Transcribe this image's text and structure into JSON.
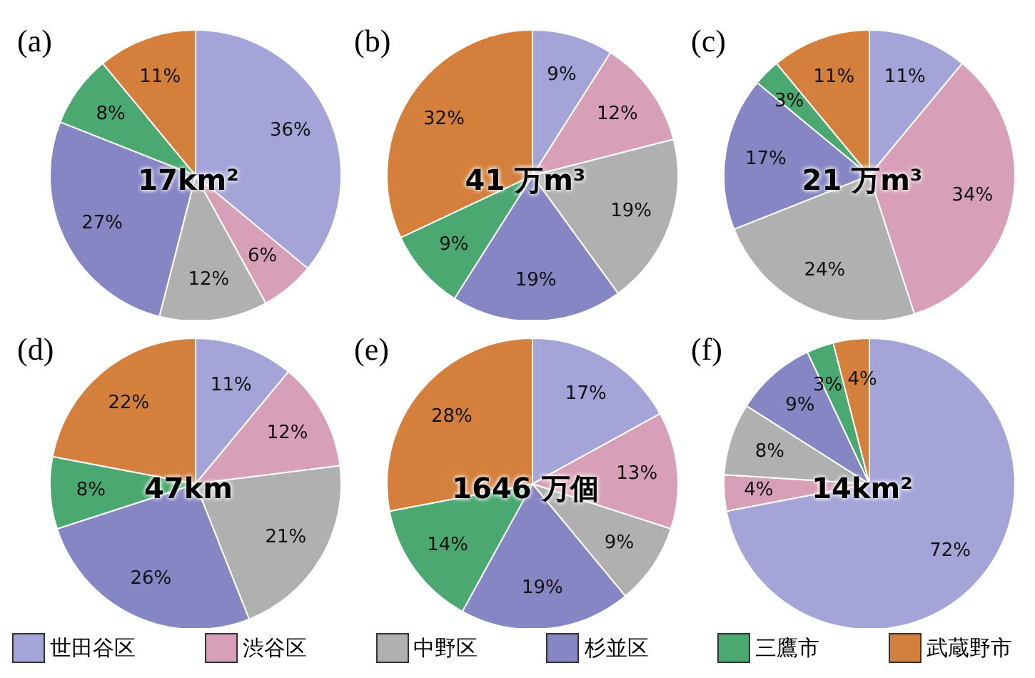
{
  "chart_data": [
    {
      "type": "pie",
      "title": "(a)",
      "categories": [
        "世田谷区",
        "渋谷区",
        "中野区",
        "杉並区",
        "三鷹市",
        "武蔵野市"
      ],
      "values": [
        36,
        6,
        12,
        27,
        8,
        11
      ],
      "value_labels": [
        "36%",
        "6%",
        "12%",
        "27%",
        "8%",
        "11%"
      ],
      "colors": [
        "#a4a4d8",
        "#d8a0b8",
        "#b0b0b0",
        "#8686c4",
        "#4aa870",
        "#d4803c"
      ],
      "annotations": [
        "17km²"
      ],
      "legend": "bottom"
    },
    {
      "type": "pie",
      "title": "(b)",
      "values": [
        9,
        12,
        19,
        19,
        9,
        32
      ],
      "value_labels": [
        "9%",
        "12%",
        "19%",
        "19%",
        "9%",
        "32%"
      ],
      "colors": [
        "#a4a4d8",
        "#d8a0b8",
        "#b0b0b0",
        "#8686c4",
        "#4aa870",
        "#d4803c"
      ],
      "annotations": [
        "41 万m³"
      ]
    },
    {
      "type": "pie",
      "title": "(c)",
      "values": [
        11,
        34,
        24,
        17,
        3,
        11
      ],
      "value_labels": [
        "11%",
        "34%",
        "24%",
        "17%",
        "3%",
        "11%"
      ],
      "colors": [
        "#a4a4d8",
        "#d8a0b8",
        "#b0b0b0",
        "#8686c4",
        "#4aa870",
        "#d4803c"
      ],
      "annotations": [
        "21 万m³"
      ]
    },
    {
      "type": "pie",
      "title": "(d)",
      "values": [
        11,
        12,
        21,
        26,
        8,
        22
      ],
      "value_labels": [
        "11%",
        "12%",
        "21%",
        "26%",
        "8%",
        "22%"
      ],
      "colors": [
        "#a4a4d8",
        "#d8a0b8",
        "#b0b0b0",
        "#8686c4",
        "#4aa870",
        "#d4803c"
      ],
      "annotations": [
        "47km"
      ]
    },
    {
      "type": "pie",
      "title": "(e)",
      "values": [
        17,
        13,
        9,
        19,
        14,
        28
      ],
      "value_labels": [
        "17%",
        "13%",
        "9%",
        "19%",
        "14%",
        "28%"
      ],
      "colors": [
        "#a4a4d8",
        "#d8a0b8",
        "#b0b0b0",
        "#8686c4",
        "#4aa870",
        "#d4803c"
      ],
      "annotations": [
        "1646 万個"
      ]
    },
    {
      "type": "pie",
      "title": "(f)",
      "values": [
        72,
        4,
        8,
        9,
        3,
        4
      ],
      "value_labels": [
        "72%",
        "4%",
        "8%",
        "9%",
        "3%",
        "4%"
      ],
      "colors": [
        "#a4a4d8",
        "#d8a0b8",
        "#b0b0b0",
        "#8686c4",
        "#4aa870",
        "#d4803c"
      ],
      "annotations": [
        "14km²"
      ]
    }
  ]
}
